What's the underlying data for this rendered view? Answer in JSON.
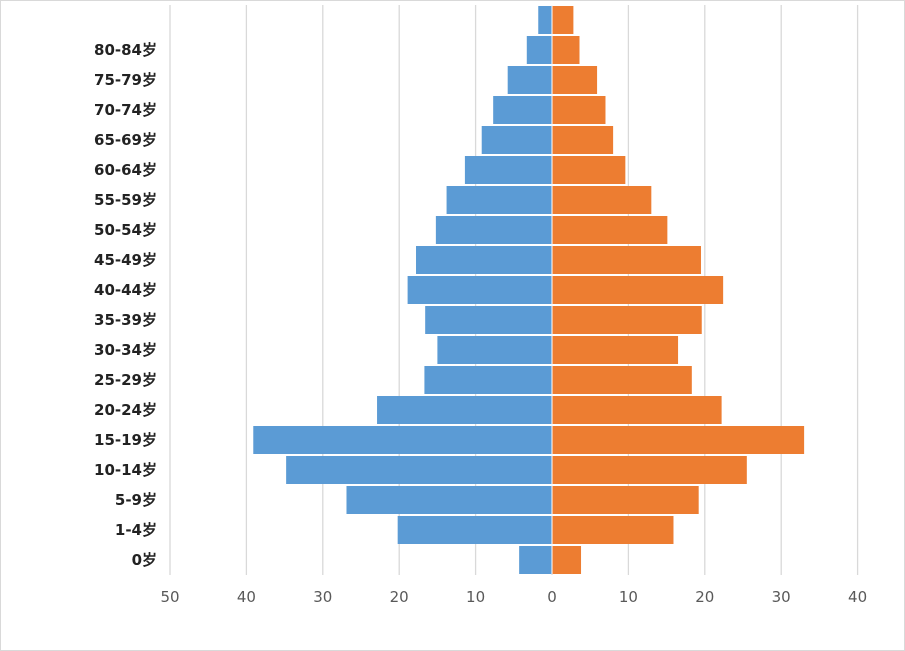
{
  "chart_data": {
    "type": "bar",
    "orientation": "horizontal",
    "layout": "population-pyramid",
    "title": "",
    "xlabel": "",
    "ylabel": "",
    "categories": [
      "0岁",
      "1-4岁",
      "5-9岁",
      "10-14岁",
      "15-19岁",
      "20-24岁",
      "25-29岁",
      "30-34岁",
      "35-39岁",
      "40-44岁",
      "45-49岁",
      "50-54岁",
      "55-59岁",
      "60-64岁",
      "65-69岁",
      "70-74岁",
      "75-79岁",
      "80-84岁",
      ""
    ],
    "series": [
      {
        "side": "left",
        "color": "#5b9bd5",
        "values": [
          4.3,
          20.2,
          26.9,
          34.8,
          39.1,
          22.9,
          16.7,
          15.0,
          16.6,
          18.9,
          17.8,
          15.2,
          13.8,
          11.4,
          9.2,
          7.7,
          5.8,
          3.3,
          1.8
        ]
      },
      {
        "side": "right",
        "color": "#ed7d31",
        "values": [
          3.8,
          15.9,
          19.2,
          25.5,
          33.0,
          22.2,
          18.3,
          16.5,
          19.6,
          22.4,
          19.5,
          15.1,
          13.0,
          9.6,
          8.0,
          7.0,
          5.9,
          3.6,
          2.8
        ]
      }
    ],
    "xlim_left": [
      0,
      50
    ],
    "xlim_right": [
      0,
      40
    ],
    "xticks": [
      "50",
      "40",
      "30",
      "20",
      "10",
      "0",
      "10",
      "20",
      "30",
      "40"
    ],
    "grid": true,
    "legend": "none"
  }
}
